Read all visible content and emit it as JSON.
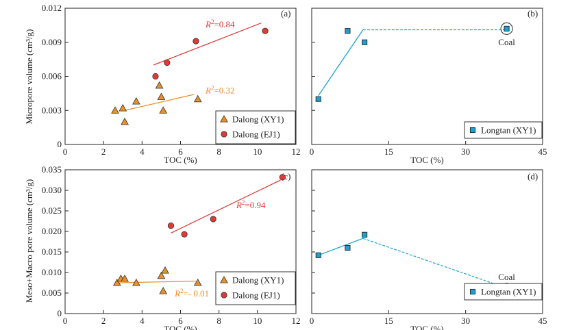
{
  "chart_data": [
    {
      "panel": "(a)",
      "type": "scatter",
      "xlabel": "TOC (%)",
      "ylabel": "Micropore volume (cm³/g)",
      "xlim": [
        0,
        12
      ],
      "ylim": [
        0,
        0.012
      ],
      "xticks": [
        0,
        2,
        4,
        6,
        8,
        10,
        12
      ],
      "yticks": [
        0,
        0.003,
        0.006,
        0.009,
        0.012
      ],
      "ytick_labels": [
        "0",
        "0.003",
        "0.006",
        "0.009",
        "0.012"
      ],
      "legend": "bottom-right",
      "series": [
        {
          "name": "Dalong (XY1)",
          "marker": "triangle",
          "color": "#e8902a",
          "points": [
            [
              2.6,
              0.003
            ],
            [
              3.0,
              0.0032
            ],
            [
              3.1,
              0.002
            ],
            [
              3.7,
              0.0038
            ],
            [
              4.9,
              0.0052
            ],
            [
              5.0,
              0.0042
            ],
            [
              5.1,
              0.003
            ],
            [
              6.9,
              0.004
            ]
          ],
          "fit": {
            "x": [
              3.1,
              6.7
            ],
            "y": [
              0.003,
              0.0044
            ],
            "label": "=0.32",
            "label_at": [
              7.3,
              0.0045
            ]
          }
        },
        {
          "name": "Dalong (EJ1)",
          "marker": "circle",
          "color": "#e03a36",
          "points": [
            [
              4.7,
              0.006
            ],
            [
              5.3,
              0.0072
            ],
            [
              6.8,
              0.0091
            ],
            [
              10.4,
              0.01
            ]
          ],
          "fit": {
            "x": [
              4.6,
              10.2
            ],
            "y": [
              0.007,
              0.0107
            ],
            "label": "=0.84",
            "label_at": [
              7.3,
              0.0103
            ]
          }
        }
      ]
    },
    {
      "panel": "(b)",
      "type": "line",
      "xlabel": "TOC (%)",
      "ylabel": "",
      "xlim": [
        0,
        45
      ],
      "ylim": [
        0,
        0.012
      ],
      "xticks": [
        0,
        15,
        30,
        45
      ],
      "yticks": [
        0.003,
        0.006,
        0.009,
        0.012
      ],
      "legend": "bottom-right",
      "series": [
        {
          "name": "Longtan (XY1)",
          "marker": "square",
          "color": "#1e9fd0",
          "points": [
            [
              1.3,
              0.004
            ],
            [
              7.0,
              0.01
            ],
            [
              10.3,
              0.009
            ],
            [
              38.0,
              0.0102
            ]
          ],
          "fit_solid": {
            "x": [
              1.3,
              10.0
            ],
            "y": [
              0.0043,
              0.0101
            ]
          },
          "fit_dashed": {
            "x": [
              10.0,
              38.0
            ],
            "y": [
              0.0101,
              0.0101
            ]
          },
          "circled_point": [
            38.0,
            0.0102
          ],
          "annotation": {
            "text": "Coal",
            "at": [
              38.0,
              0.009
            ]
          }
        }
      ]
    },
    {
      "panel": "(c)",
      "type": "scatter",
      "xlabel": "TOC (%)",
      "ylabel": "Meso+Macro pore volume (cm³/g)",
      "xlim": [
        0,
        12
      ],
      "ylim": [
        0,
        0.035
      ],
      "xticks": [
        0,
        2,
        4,
        6,
        8,
        10,
        12
      ],
      "yticks": [
        0,
        0.005,
        0.01,
        0.015,
        0.02,
        0.025,
        0.03,
        0.035
      ],
      "ytick_labels": [
        "0",
        "0.005",
        "0.010",
        "0.015",
        "0.020",
        "0.025",
        "0.030",
        "0.035"
      ],
      "legend": "bottom-right",
      "series": [
        {
          "name": "Dalong (XY1)",
          "marker": "triangle",
          "color": "#e8902a",
          "points": [
            [
              2.7,
              0.0075
            ],
            [
              2.9,
              0.0085
            ],
            [
              3.1,
              0.0085
            ],
            [
              3.7,
              0.0075
            ],
            [
              5.0,
              0.0092
            ],
            [
              5.1,
              0.0055
            ],
            [
              5.2,
              0.0105
            ],
            [
              6.9,
              0.0075
            ]
          ],
          "fit": {
            "x": [
              2.8,
              6.8
            ],
            "y": [
              0.0075,
              0.0079
            ],
            "label": "=- 0.01",
            "label_at": [
              5.7,
              0.0042
            ]
          }
        },
        {
          "name": "Dalong (EJ1)",
          "marker": "circle",
          "color": "#e03a36",
          "points": [
            [
              5.5,
              0.0214
            ],
            [
              6.2,
              0.0193
            ],
            [
              7.7,
              0.023
            ],
            [
              11.3,
              0.0332
            ]
          ],
          "fit": {
            "x": [
              5.5,
              11.2
            ],
            "y": [
              0.0196,
              0.0325
            ],
            "label": "=0.94",
            "label_at": [
              8.9,
              0.0257
            ]
          }
        }
      ]
    },
    {
      "panel": "(d)",
      "type": "line",
      "xlabel": "TOC (%)",
      "ylabel": "",
      "xlim": [
        0,
        45
      ],
      "ylim": [
        0,
        0.035
      ],
      "xticks": [
        0,
        15,
        30,
        45
      ],
      "yticks": [
        0.005,
        0.01,
        0.015,
        0.02,
        0.025,
        0.03,
        0.035
      ],
      "legend": "bottom-right",
      "series": [
        {
          "name": "Longtan (XY1)",
          "marker": "square",
          "color": "#1e9fd0",
          "points": [
            [
              1.3,
              0.0142
            ],
            [
              7.0,
              0.016
            ],
            [
              10.3,
              0.0192
            ],
            [
              38.0,
              0.006
            ]
          ],
          "fit_solid": {
            "x": [
              1.3,
              10.0
            ],
            "y": [
              0.0142,
              0.0183
            ]
          },
          "fit_dashed": {
            "x": [
              10.0,
              38.0
            ],
            "y": [
              0.0183,
              0.0062
            ]
          },
          "circled_point": [
            38.0,
            0.006
          ],
          "annotation": {
            "text": "Coal",
            "at": [
              38.0,
              0.0088
            ]
          }
        }
      ]
    }
  ],
  "r2_symbol": "R²"
}
